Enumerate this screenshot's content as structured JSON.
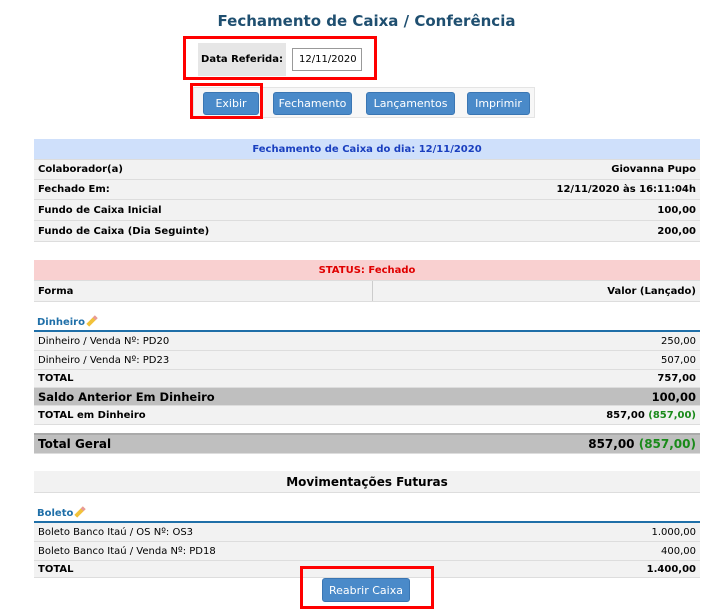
{
  "title": "Fechamento de Caixa / Conferência",
  "date_filter": {
    "label": "Data Referida:",
    "value": "12/11/2020"
  },
  "toolbar": {
    "exibir": "Exibir",
    "fechamento": "Fechamento",
    "lancamentos": "Lançamentos",
    "imprimir": "Imprimir"
  },
  "summary": {
    "header": "Fechamento de Caixa do dia: 12/11/2020",
    "rows": [
      {
        "label": "Colaborador(a)",
        "value": "Giovanna Pupo"
      },
      {
        "label": "Fechado Em:",
        "value": "12/11/2020 às 16:11:04h"
      },
      {
        "label": "Fundo de Caixa Inicial",
        "value": "100,00"
      },
      {
        "label": "Fundo de Caixa (Dia Seguinte)",
        "value": "200,00"
      }
    ]
  },
  "status": {
    "text": "STATUS: Fechado",
    "col_forma": "Forma",
    "col_valor": "Valor (Lançado)"
  },
  "dinheiro": {
    "title": "Dinheiro",
    "items": [
      {
        "label": "Dinheiro / Venda Nº: PD20",
        "value": "250,00"
      },
      {
        "label": "Dinheiro / Venda Nº: PD23",
        "value": "507,00"
      }
    ],
    "total_label": "TOTAL",
    "total": "757,00",
    "saldo_label": "Saldo Anterior Em Dinheiro",
    "saldo": "100,00",
    "total_din_label": "TOTAL em Dinheiro",
    "total_din": "857,00",
    "total_din_launched": "(857,00)"
  },
  "total_geral": {
    "label": "Total Geral",
    "value": "857,00",
    "launched": "(857,00)"
  },
  "futuras": {
    "title": "Movimentações Futuras",
    "section": "Boleto",
    "items": [
      {
        "label": "Boleto Banco Itaú / OS Nº: OS3",
        "value": "1.000,00"
      },
      {
        "label": "Boleto Banco Itaú / Venda Nº: PD18",
        "value": "400,00"
      }
    ],
    "total_label": "TOTAL",
    "total": "1.400,00"
  },
  "reabrir": "Reabrir Caixa",
  "colors": {
    "accent": "#4a8ac9",
    "header_blue": "#cfe0fb",
    "status_pink": "#f9d0d0",
    "highlight": "#ff0000"
  }
}
